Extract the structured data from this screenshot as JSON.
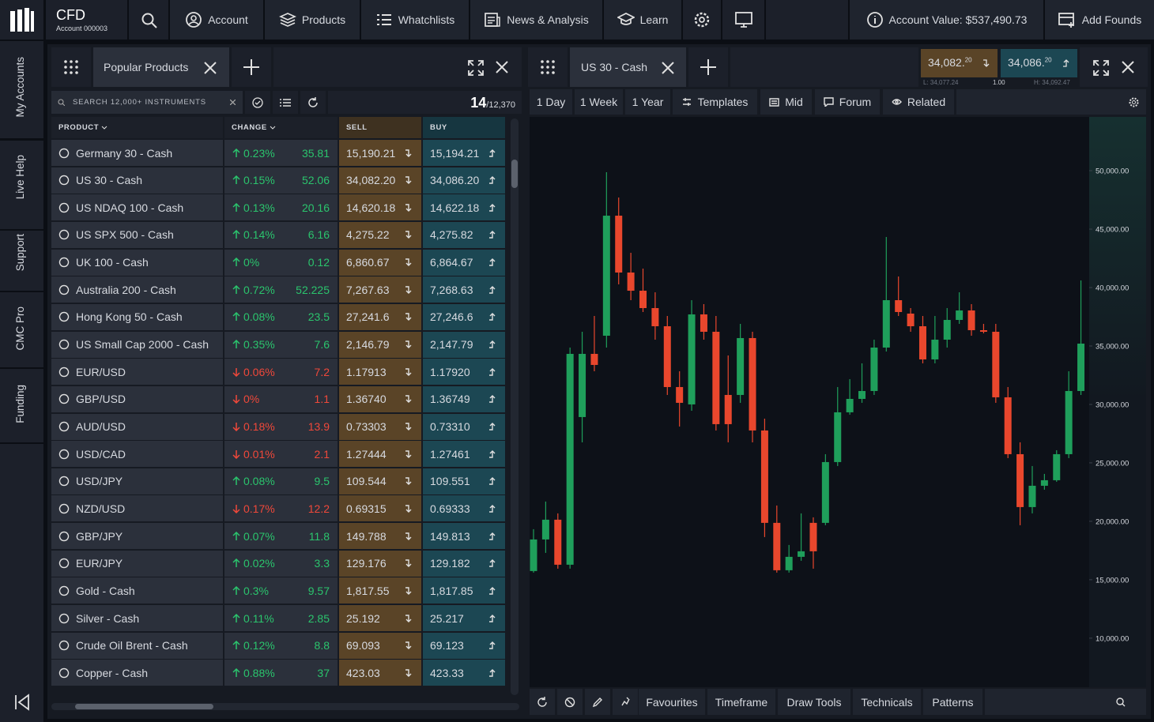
{
  "top_bar": {
    "brand": "CFD",
    "account": "Account 000003",
    "nav": [
      "Account",
      "Products",
      "Whatchlists",
      "News & Analysis",
      "Learn"
    ],
    "account_value": "Account Value: $537,490.73",
    "add_funds": "Add Founds"
  },
  "sidebar": [
    "My Accounts",
    "Live Help",
    "Support",
    "CMC Pro",
    "Funding"
  ],
  "products_panel": {
    "tab": "Popular Products",
    "search_placeholder": "SEARCH 12,000+ INSTRUMENTS",
    "count": "14",
    "total": "/12,370",
    "columns": [
      "PRODUCT",
      "CHANGE",
      "SELL",
      "BUY"
    ],
    "up_color": "#2bc46d",
    "down_color": "#f0483a",
    "rows": [
      {
        "name": "Germany 30 - Cash",
        "direction": "up",
        "change_pct": "0.23%",
        "change": "35.81",
        "sell": "15,190.21",
        "buy": "15,194.21"
      },
      {
        "name": "US 30 - Cash",
        "direction": "up",
        "change_pct": "0.15%",
        "change": "52.06",
        "sell": "34,082.20",
        "buy": "34,086.20"
      },
      {
        "name": "US NDAQ 100 - Cash",
        "direction": "up",
        "change_pct": "0.13%",
        "change": "20.16",
        "sell": "14,620.18",
        "buy": "14,622.18"
      },
      {
        "name": "US SPX 500 - Cash",
        "direction": "up",
        "change_pct": "0.14%",
        "change": "6.16",
        "sell": "4,275.22",
        "buy": "4,275.82"
      },
      {
        "name": "UK 100 - Cash",
        "direction": "up",
        "change_pct": "0%",
        "change": "0.12",
        "sell": "6,860.67",
        "buy": "6,864.67"
      },
      {
        "name": "Australia 200 - Cash",
        "direction": "up",
        "change_pct": "0.72%",
        "change": "52.225",
        "sell": "7,267.63",
        "buy": "7,268.63"
      },
      {
        "name": "Hong Kong 50 - Cash",
        "direction": "up",
        "change_pct": "0.08%",
        "change": "23.5",
        "sell": "27,241.6",
        "buy": "27,246.6"
      },
      {
        "name": "US Small Cap 2000 - Cash",
        "direction": "up",
        "change_pct": "0.35%",
        "change": "7.6",
        "sell": "2,146.79",
        "buy": "2,147.79"
      },
      {
        "name": "EUR/USD",
        "direction": "down",
        "change_pct": "0.06%",
        "change": "7.2",
        "sell": "1.17913",
        "buy": "1.17920"
      },
      {
        "name": "GBP/USD",
        "direction": "down",
        "change_pct": "0%",
        "change": "1.1",
        "sell": "1.36740",
        "buy": "1.36749"
      },
      {
        "name": "AUD/USD",
        "direction": "down",
        "change_pct": "0.18%",
        "change": "13.9",
        "sell": "0.73303",
        "buy": "0.73310"
      },
      {
        "name": "USD/CAD",
        "direction": "down",
        "change_pct": "0.01%",
        "change": "2.1",
        "sell": "1.27444",
        "buy": "1.27461"
      },
      {
        "name": "USD/JPY",
        "direction": "up",
        "change_pct": "0.08%",
        "change": "9.5",
        "sell": "109.544",
        "buy": "109.551"
      },
      {
        "name": "NZD/USD",
        "direction": "down",
        "change_pct": "0.17%",
        "change": "12.2",
        "sell": "0.69315",
        "buy": "0.69333"
      },
      {
        "name": "GBP/JPY",
        "direction": "up",
        "change_pct": "0.07%",
        "change": "11.8",
        "sell": "149.788",
        "buy": "149.813"
      },
      {
        "name": "EUR/JPY",
        "direction": "up",
        "change_pct": "0.02%",
        "change": "3.3",
        "sell": "129.176",
        "buy": "129.182"
      },
      {
        "name": "Gold - Cash",
        "direction": "up",
        "change_pct": "0.3%",
        "change": "9.57",
        "sell": "1,817.55",
        "buy": "1,817.85"
      },
      {
        "name": "Silver - Cash",
        "direction": "up",
        "change_pct": "0.11%",
        "change": "2.85",
        "sell": "25.192",
        "buy": "25.217"
      },
      {
        "name": "Crude Oil Brent - Cash",
        "direction": "up",
        "change_pct": "0.12%",
        "change": "8.8",
        "sell": "69.093",
        "buy": "69.123"
      },
      {
        "name": "Copper - Cash",
        "direction": "up",
        "change_pct": "0.88%",
        "change": "37",
        "sell": "423.03",
        "buy": "423.33"
      }
    ]
  },
  "chart_panel": {
    "tab": "US 30 - Cash",
    "sell": {
      "price": "34,082.",
      "sup": "20"
    },
    "buy": {
      "price": "34,086.",
      "sup": "20"
    },
    "low": "L: 34,077.24",
    "spread": "1.00",
    "high": "H: 34,092.47",
    "toolbar": [
      "1 Day",
      "1 Week",
      "1 Year",
      "Templates",
      "Mid",
      "Forum",
      "Related"
    ],
    "bottom_tools": [
      "Favourites",
      "Timeframe",
      "Draw Tools",
      "Technicals",
      "Patterns"
    ]
  },
  "chart_data": {
    "type": "candlestick",
    "up_color": "#1f9f5b",
    "down_color": "#e9472d",
    "ylim": [
      5800,
      54600
    ],
    "yticks": [
      {
        "value": 10000,
        "label": "10,000.00"
      },
      {
        "value": 15000,
        "label": "15,000.00"
      },
      {
        "value": 20000,
        "label": "20,000.00"
      },
      {
        "value": 25000,
        "label": "25,000.00"
      },
      {
        "value": 30000,
        "label": "30,000.00"
      },
      {
        "value": 35000,
        "label": "35,000.00"
      },
      {
        "value": 40000,
        "label": "40,000.00"
      },
      {
        "value": 45000,
        "label": "45,000.00"
      },
      {
        "value": 50000,
        "label": "50,000.00"
      }
    ],
    "candles": [
      {
        "open": 15743,
        "high": 19324,
        "low": 15608,
        "close": 18446
      },
      {
        "open": 18446,
        "high": 21689,
        "low": 17297,
        "close": 20135
      },
      {
        "open": 20135,
        "high": 20675,
        "low": 15946,
        "close": 16284
      },
      {
        "open": 16284,
        "high": 34864,
        "low": 15946,
        "close": 34324
      },
      {
        "open": 28919,
        "high": 36216,
        "low": 26757,
        "close": 34324
      },
      {
        "open": 34324,
        "high": 37567,
        "low": 32838,
        "close": 33378
      },
      {
        "open": 35878,
        "high": 49865,
        "low": 34864,
        "close": 46149
      },
      {
        "open": 46149,
        "high": 47703,
        "low": 40270,
        "close": 41284
      },
      {
        "open": 41284,
        "high": 42973,
        "low": 38919,
        "close": 39729
      },
      {
        "open": 39729,
        "high": 41621,
        "low": 37905,
        "close": 38243
      },
      {
        "open": 38243,
        "high": 39594,
        "low": 35540,
        "close": 36689
      },
      {
        "open": 36689,
        "high": 37567,
        "low": 30810,
        "close": 31486
      },
      {
        "open": 31486,
        "high": 32838,
        "low": 28108,
        "close": 30135
      },
      {
        "open": 30000,
        "high": 38919,
        "low": 29459,
        "close": 37702
      },
      {
        "open": 37702,
        "high": 38581,
        "low": 35540,
        "close": 36216
      },
      {
        "open": 36216,
        "high": 37567,
        "low": 27770,
        "close": 28311
      },
      {
        "open": 30810,
        "high": 34189,
        "low": 26757,
        "close": 28311
      },
      {
        "open": 30810,
        "high": 36891,
        "low": 30135,
        "close": 35676
      },
      {
        "open": 35676,
        "high": 36216,
        "low": 26757,
        "close": 27770
      },
      {
        "open": 27770,
        "high": 28784,
        "low": 18649,
        "close": 19865
      },
      {
        "open": 19865,
        "high": 21351,
        "low": 15608,
        "close": 15811
      },
      {
        "open": 15811,
        "high": 17973,
        "low": 15608,
        "close": 16959
      },
      {
        "open": 16959,
        "high": 20675,
        "low": 16621,
        "close": 17433
      },
      {
        "open": 19865,
        "high": 20337,
        "low": 15946,
        "close": 17433
      },
      {
        "open": 19865,
        "high": 25742,
        "low": 19662,
        "close": 25067
      },
      {
        "open": 25067,
        "high": 31486,
        "low": 24729,
        "close": 29324
      },
      {
        "open": 29324,
        "high": 32162,
        "low": 29121,
        "close": 30472
      },
      {
        "open": 30472,
        "high": 33513,
        "low": 30135,
        "close": 31148
      },
      {
        "open": 31148,
        "high": 35540,
        "low": 30810,
        "close": 34864
      },
      {
        "open": 34864,
        "high": 44324,
        "low": 34527,
        "close": 38919
      },
      {
        "open": 38919,
        "high": 40946,
        "low": 37567,
        "close": 37905
      },
      {
        "open": 37770,
        "high": 38243,
        "low": 36216,
        "close": 36689
      },
      {
        "open": 36689,
        "high": 37567,
        "low": 33513,
        "close": 33851
      },
      {
        "open": 33851,
        "high": 37567,
        "low": 33513,
        "close": 35540
      },
      {
        "open": 35540,
        "high": 38243,
        "low": 34864,
        "close": 37229
      },
      {
        "open": 37229,
        "high": 39594,
        "low": 36891,
        "close": 38040
      },
      {
        "open": 38040,
        "high": 38581,
        "low": 35878,
        "close": 36351
      },
      {
        "open": 36351,
        "high": 36891,
        "low": 36081,
        "close": 36216
      },
      {
        "open": 36216,
        "high": 36891,
        "low": 30135,
        "close": 30608
      },
      {
        "open": 30608,
        "high": 31486,
        "low": 25405,
        "close": 25742
      },
      {
        "open": 25742,
        "high": 26757,
        "low": 19662,
        "close": 21216
      },
      {
        "open": 21216,
        "high": 24729,
        "low": 20675,
        "close": 23040
      },
      {
        "open": 23040,
        "high": 24054,
        "low": 22702,
        "close": 23513
      },
      {
        "open": 23513,
        "high": 26080,
        "low": 23378,
        "close": 25742
      },
      {
        "open": 25742,
        "high": 32838,
        "low": 25405,
        "close": 31148
      },
      {
        "open": 31148,
        "high": 40608,
        "low": 30810,
        "close": 35202
      }
    ]
  }
}
